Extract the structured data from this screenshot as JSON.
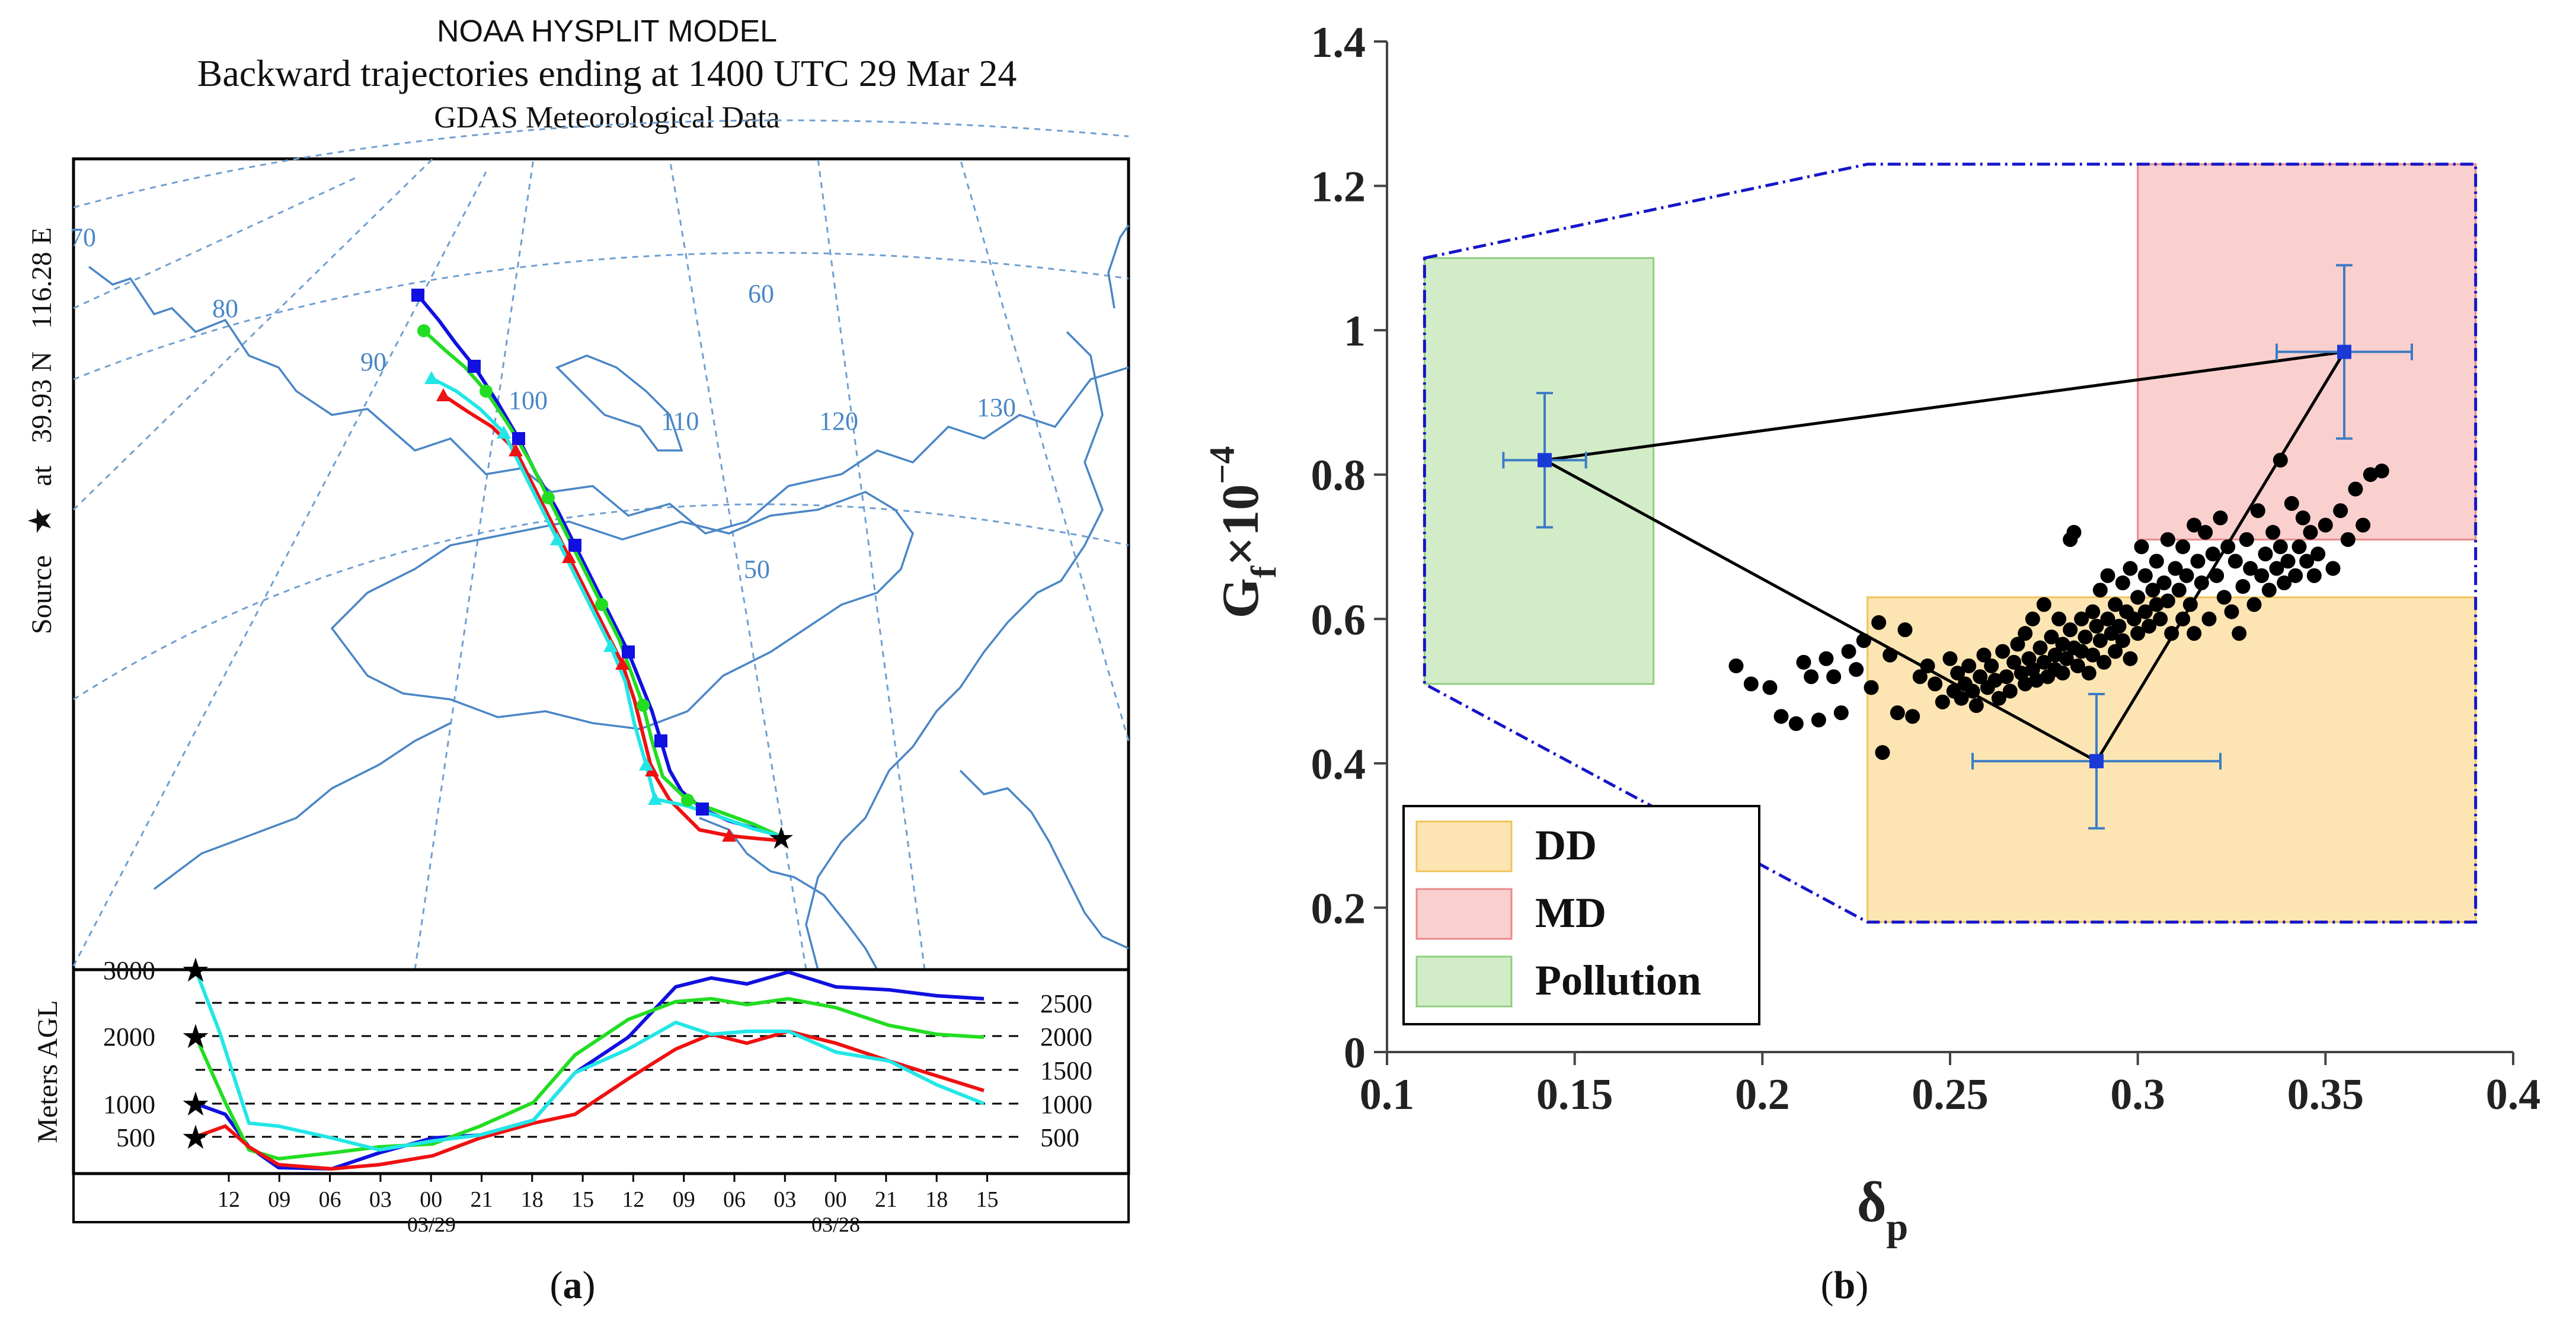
{
  "panel_a": {
    "caption_open": "(",
    "caption_letter": "a",
    "caption_close": ")",
    "title_line1": "NOAA HYSPLIT MODEL",
    "title_line2": "Backward trajectories ending at 1400 UTC 29 Mar 24",
    "title_line3": "GDAS Meteorological Data",
    "side_label_source": "Source",
    "side_label_at": "at",
    "side_label_lat": "39.93 N",
    "side_label_lon": "116.28 E",
    "meridian_labels": [
      "70",
      "80",
      "90",
      "100",
      "110",
      "120",
      "130"
    ],
    "parallel_labels": [
      "60",
      "50"
    ],
    "height_axis_label": "Meters AGL",
    "height_ticks_left": [
      "3000",
      "2000",
      "1000",
      "500"
    ],
    "height_ticks_right": [
      "2500",
      "2000",
      "1500",
      "1000",
      "500"
    ],
    "time_ticks": [
      "12",
      "09",
      "06",
      "03",
      "00",
      "21",
      "18",
      "15",
      "12",
      "09",
      "06",
      "03",
      "00",
      "21",
      "18",
      "15"
    ],
    "date_labels": [
      "03/29",
      "03/28"
    ],
    "colors": {
      "blue": "#1010e0",
      "green": "#22dd22",
      "red": "#ee1111",
      "cyan": "#22e6e6",
      "map": "#4a86c6",
      "grid": "#6f9fd0"
    }
  },
  "chart_data": {
    "type": "scatter",
    "panel_label_open": "(",
    "panel_label_letter": "b",
    "panel_label_close": ")",
    "xlabel": "δ",
    "xlabel_sub": "p",
    "ylabel_main": "G",
    "ylabel_sub": "f",
    "ylabel_mult": "×10",
    "ylabel_exp": "−4",
    "xlim": [
      0.1,
      0.4
    ],
    "ylim": [
      0,
      1.4
    ],
    "x_ticks": [
      0.1,
      0.15,
      0.2,
      0.25,
      0.3,
      0.35,
      0.4
    ],
    "x_tick_labels": [
      "0.1",
      "0.15",
      "0.2",
      "0.25",
      "0.3",
      "0.35",
      "0.4"
    ],
    "y_ticks": [
      0,
      0.2,
      0.4,
      0.6,
      0.8,
      1.0,
      1.2,
      1.4
    ],
    "y_tick_labels": [
      "0",
      "0.2",
      "0.4",
      "0.6",
      "0.8",
      "1",
      "1.2",
      "1.4"
    ],
    "regions": [
      {
        "name": "DD",
        "x": [
          0.228,
          0.39
        ],
        "y": [
          0.18,
          0.63
        ],
        "fill": "#fde5b3",
        "stroke": "#f0c35a"
      },
      {
        "name": "MD",
        "x": [
          0.3,
          0.39
        ],
        "y": [
          0.71,
          1.23
        ],
        "fill": "#fad0cf",
        "stroke": "#e88a88"
      },
      {
        "name": "Pollution",
        "x": [
          0.11,
          0.171
        ],
        "y": [
          0.51,
          1.1
        ],
        "fill": "#d3ecc8",
        "stroke": "#8fcf7e"
      }
    ],
    "envelope": [
      [
        0.11,
        1.1
      ],
      [
        0.228,
        1.23
      ],
      [
        0.39,
        1.23
      ],
      [
        0.39,
        0.18
      ],
      [
        0.228,
        0.18
      ],
      [
        0.11,
        0.51
      ]
    ],
    "envelope_color": "#1515c8",
    "centroids": [
      {
        "name": "Pollution",
        "x": 0.142,
        "y": 0.82,
        "xerr": 0.011,
        "yerr": 0.093
      },
      {
        "name": "MD",
        "x": 0.355,
        "y": 0.97,
        "xerr": 0.018,
        "yerr": 0.12
      },
      {
        "name": "DD",
        "x": 0.289,
        "y": 0.403,
        "xerr": 0.033,
        "yerr": 0.093
      }
    ],
    "centroid_color": "#1a3ad6",
    "errorbar_color": "#3c7cc4",
    "legend": [
      {
        "label": "DD",
        "fill": "#fde5b3",
        "stroke": "#f0c35a"
      },
      {
        "label": "MD",
        "fill": "#fad0cf",
        "stroke": "#e88a88"
      },
      {
        "label": "Pollution",
        "fill": "#d3ecc8",
        "stroke": "#8fcf7e"
      }
    ],
    "legend_position": "bottom-left",
    "scatter_points": [
      [
        0.193,
        0.535
      ],
      [
        0.197,
        0.51
      ],
      [
        0.202,
        0.505
      ],
      [
        0.205,
        0.465
      ],
      [
        0.209,
        0.455
      ],
      [
        0.211,
        0.54
      ],
      [
        0.213,
        0.52
      ],
      [
        0.215,
        0.46
      ],
      [
        0.217,
        0.545
      ],
      [
        0.219,
        0.52
      ],
      [
        0.221,
        0.47
      ],
      [
        0.223,
        0.555
      ],
      [
        0.225,
        0.53
      ],
      [
        0.227,
        0.57
      ],
      [
        0.229,
        0.505
      ],
      [
        0.231,
        0.595
      ],
      [
        0.232,
        0.415
      ],
      [
        0.234,
        0.55
      ],
      [
        0.236,
        0.47
      ],
      [
        0.238,
        0.585
      ],
      [
        0.24,
        0.465
      ],
      [
        0.242,
        0.52
      ],
      [
        0.244,
        0.535
      ],
      [
        0.246,
        0.51
      ],
      [
        0.248,
        0.485
      ],
      [
        0.25,
        0.545
      ],
      [
        0.251,
        0.5
      ],
      [
        0.252,
        0.525
      ],
      [
        0.253,
        0.49
      ],
      [
        0.254,
        0.51
      ],
      [
        0.255,
        0.535
      ],
      [
        0.256,
        0.5
      ],
      [
        0.257,
        0.48
      ],
      [
        0.258,
        0.52
      ],
      [
        0.259,
        0.55
      ],
      [
        0.26,
        0.505
      ],
      [
        0.261,
        0.535
      ],
      [
        0.262,
        0.515
      ],
      [
        0.263,
        0.49
      ],
      [
        0.264,
        0.555
      ],
      [
        0.265,
        0.52
      ],
      [
        0.266,
        0.5
      ],
      [
        0.267,
        0.54
      ],
      [
        0.268,
        0.565
      ],
      [
        0.269,
        0.525
      ],
      [
        0.27,
        0.51
      ],
      [
        0.27,
        0.58
      ],
      [
        0.271,
        0.545
      ],
      [
        0.272,
        0.53
      ],
      [
        0.272,
        0.6
      ],
      [
        0.273,
        0.515
      ],
      [
        0.274,
        0.56
      ],
      [
        0.275,
        0.54
      ],
      [
        0.275,
        0.62
      ],
      [
        0.276,
        0.52
      ],
      [
        0.277,
        0.575
      ],
      [
        0.278,
        0.55
      ],
      [
        0.278,
        0.53
      ],
      [
        0.279,
        0.6
      ],
      [
        0.28,
        0.565
      ],
      [
        0.28,
        0.525
      ],
      [
        0.281,
        0.545
      ],
      [
        0.282,
        0.585
      ],
      [
        0.282,
        0.71
      ],
      [
        0.283,
        0.56
      ],
      [
        0.283,
        0.72
      ],
      [
        0.284,
        0.535
      ],
      [
        0.285,
        0.6
      ],
      [
        0.285,
        0.555
      ],
      [
        0.286,
        0.575
      ],
      [
        0.287,
        0.525
      ],
      [
        0.288,
        0.61
      ],
      [
        0.288,
        0.55
      ],
      [
        0.289,
        0.59
      ],
      [
        0.29,
        0.57
      ],
      [
        0.29,
        0.64
      ],
      [
        0.291,
        0.54
      ],
      [
        0.292,
        0.6
      ],
      [
        0.292,
        0.66
      ],
      [
        0.293,
        0.58
      ],
      [
        0.294,
        0.555
      ],
      [
        0.294,
        0.62
      ],
      [
        0.295,
        0.59
      ],
      [
        0.296,
        0.65
      ],
      [
        0.296,
        0.57
      ],
      [
        0.297,
        0.61
      ],
      [
        0.298,
        0.545
      ],
      [
        0.298,
        0.67
      ],
      [
        0.299,
        0.6
      ],
      [
        0.3,
        0.63
      ],
      [
        0.3,
        0.58
      ],
      [
        0.301,
        0.7
      ],
      [
        0.302,
        0.61
      ],
      [
        0.302,
        0.66
      ],
      [
        0.303,
        0.59
      ],
      [
        0.304,
        0.64
      ],
      [
        0.305,
        0.62
      ],
      [
        0.305,
        0.68
      ],
      [
        0.306,
        0.6
      ],
      [
        0.307,
        0.65
      ],
      [
        0.308,
        0.71
      ],
      [
        0.308,
        0.625
      ],
      [
        0.309,
        0.58
      ],
      [
        0.31,
        0.67
      ],
      [
        0.311,
        0.64
      ],
      [
        0.312,
        0.6
      ],
      [
        0.312,
        0.7
      ],
      [
        0.313,
        0.66
      ],
      [
        0.314,
        0.62
      ],
      [
        0.315,
        0.73
      ],
      [
        0.315,
        0.58
      ],
      [
        0.316,
        0.68
      ],
      [
        0.317,
        0.65
      ],
      [
        0.318,
        0.72
      ],
      [
        0.319,
        0.6
      ],
      [
        0.32,
        0.69
      ],
      [
        0.321,
        0.66
      ],
      [
        0.322,
        0.74
      ],
      [
        0.323,
        0.63
      ],
      [
        0.324,
        0.7
      ],
      [
        0.325,
        0.61
      ],
      [
        0.326,
        0.68
      ],
      [
        0.327,
        0.58
      ],
      [
        0.328,
        0.645
      ],
      [
        0.329,
        0.71
      ],
      [
        0.33,
        0.67
      ],
      [
        0.331,
        0.62
      ],
      [
        0.332,
        0.75
      ],
      [
        0.333,
        0.66
      ],
      [
        0.334,
        0.69
      ],
      [
        0.335,
        0.64
      ],
      [
        0.336,
        0.72
      ],
      [
        0.337,
        0.67
      ],
      [
        0.338,
        0.7
      ],
      [
        0.339,
        0.65
      ],
      [
        0.34,
        0.68
      ],
      [
        0.341,
        0.76
      ],
      [
        0.342,
        0.66
      ],
      [
        0.343,
        0.7
      ],
      [
        0.344,
        0.74
      ],
      [
        0.345,
        0.68
      ],
      [
        0.346,
        0.72
      ],
      [
        0.347,
        0.66
      ],
      [
        0.348,
        0.69
      ],
      [
        0.35,
        0.73
      ],
      [
        0.352,
        0.67
      ],
      [
        0.354,
        0.75
      ],
      [
        0.356,
        0.71
      ],
      [
        0.358,
        0.78
      ],
      [
        0.36,
        0.73
      ],
      [
        0.362,
        0.8
      ],
      [
        0.365,
        0.805
      ],
      [
        0.338,
        0.82
      ]
    ]
  }
}
